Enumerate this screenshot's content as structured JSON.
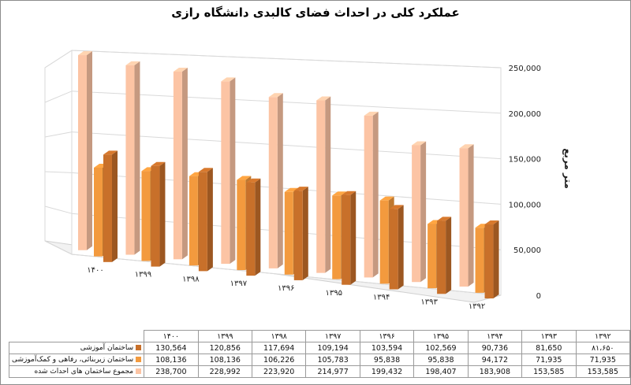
{
  "chart_data": {
    "type": "bar",
    "title": "عملکرد کلی در احداث فضای کالبدی دانشگاه رازی",
    "ylabel": "متر مربع",
    "ylim": [
      0,
      250000
    ],
    "yticks": [
      "0",
      "50,000",
      "100,000",
      "150,000",
      "200,000",
      "250,000"
    ],
    "categories": [
      "۱۴۰۰",
      "۱۳۹۹",
      "۱۳۹۸",
      "۱۳۹۷",
      "۱۳۹۶",
      "۱۳۹۵",
      "۱۳۹۴",
      "۱۳۹۳",
      "۱۳۹۲"
    ],
    "series": [
      {
        "name": "ساختمان آموزشی",
        "color": "#c8702a",
        "values": [
          130564,
          120856,
          117694,
          109194,
          103594,
          102569,
          90736,
          81650,
          81650
        ],
        "display": [
          "130,564",
          "120,856",
          "117,694",
          "109,194",
          "103,594",
          "102,569",
          "90,736",
          "81,650",
          "۸۱،۶۵۰"
        ]
      },
      {
        "name": "ساختمان زیربنائی، رفاهی و کمک‌آموزشی",
        "color": "#f39a3e",
        "values": [
          108136,
          108136,
          106226,
          105783,
          95838,
          95838,
          94172,
          71935,
          71935
        ],
        "display": [
          "108,136",
          "108,136",
          "106,226",
          "105,783",
          "95,838",
          "95,838",
          "94,172",
          "71,935",
          "71,935"
        ]
      },
      {
        "name": "مجموع ساختمان های احداث شده",
        "color": "#fcc4a4",
        "values": [
          238700,
          228992,
          223920,
          214977,
          199432,
          198407,
          183908,
          153585,
          153585
        ],
        "display": [
          "238,700",
          "228,992",
          "223,920",
          "214,977",
          "199,432",
          "198,407",
          "183,908",
          "153,585",
          "153,585"
        ]
      }
    ],
    "grid": true,
    "legend": "table-below"
  }
}
